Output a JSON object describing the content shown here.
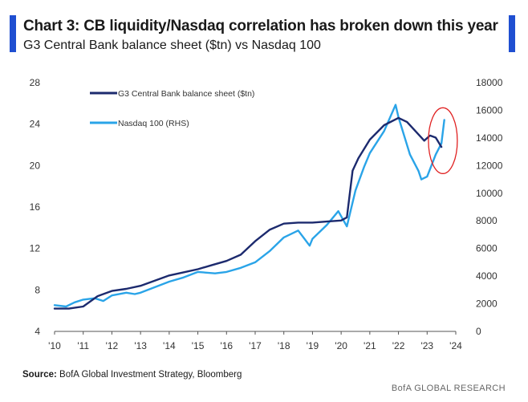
{
  "header": {
    "title": "Chart 3: CB liquidity/Nasdaq correlation has broken down this year",
    "subtitle": "G3 Central Bank balance sheet ($tn) vs Nasdaq 100"
  },
  "footer": {
    "source_label": "Source:",
    "source_text": "BofA Global Investment Strategy, Bloomberg",
    "brand": "BofA GLOBAL RESEARCH"
  },
  "colors": {
    "accent": "#1f4fd1",
    "balance_sheet": "#1c2a6e",
    "nasdaq": "#2aa4e8",
    "highlight_circle": "#e02020"
  },
  "chart_data": {
    "type": "line",
    "xlim": [
      2010,
      2024
    ],
    "x_ticks": [
      2010,
      2011,
      2012,
      2013,
      2014,
      2015,
      2016,
      2017,
      2018,
      2019,
      2020,
      2021,
      2022,
      2023,
      2024
    ],
    "x_tick_labels": [
      "'10",
      "'11",
      "'12",
      "'13",
      "'14",
      "'15",
      "'16",
      "'17",
      "'18",
      "'19",
      "'20",
      "'21",
      "'22",
      "'23",
      "'24"
    ],
    "ylim_left": [
      4,
      28
    ],
    "y_left_ticks": [
      4,
      8,
      12,
      16,
      20,
      24,
      28
    ],
    "ylim_right": [
      0,
      18000
    ],
    "y_right_ticks": [
      0,
      2000,
      4000,
      6000,
      8000,
      10000,
      12000,
      14000,
      16000,
      18000
    ],
    "legend_placement": "top-left",
    "annotation": "red circle around 2023 divergence",
    "series": [
      {
        "name": "G3 Central Bank balance sheet ($tn)",
        "axis": "left",
        "x": [
          2010.0,
          2010.5,
          2011.0,
          2011.5,
          2012.0,
          2012.5,
          2013.0,
          2013.5,
          2014.0,
          2014.5,
          2015.0,
          2015.5,
          2016.0,
          2016.5,
          2017.0,
          2017.5,
          2018.0,
          2018.5,
          2019.0,
          2019.5,
          2020.0,
          2020.2,
          2020.4,
          2020.6,
          2021.0,
          2021.5,
          2022.0,
          2022.3,
          2022.6,
          2022.9,
          2023.1,
          2023.3,
          2023.5
        ],
        "y": [
          6.2,
          6.2,
          6.4,
          7.4,
          7.9,
          8.1,
          8.4,
          8.9,
          9.4,
          9.7,
          10.0,
          10.4,
          10.8,
          11.4,
          12.7,
          13.8,
          14.4,
          14.5,
          14.5,
          14.6,
          14.7,
          15.0,
          19.5,
          20.7,
          22.5,
          23.9,
          24.6,
          24.2,
          23.3,
          22.4,
          22.9,
          22.7,
          21.8
        ]
      },
      {
        "name": "Nasdaq 100 (RHS)",
        "axis": "right",
        "x": [
          2010.0,
          2010.4,
          2010.7,
          2011.0,
          2011.4,
          2011.7,
          2012.0,
          2012.5,
          2012.8,
          2013.0,
          2013.5,
          2014.0,
          2014.5,
          2015.0,
          2015.6,
          2016.0,
          2016.5,
          2017.0,
          2017.5,
          2018.0,
          2018.5,
          2018.9,
          2019.0,
          2019.5,
          2019.9,
          2020.2,
          2020.5,
          2020.8,
          2021.0,
          2021.5,
          2021.9,
          2022.0,
          2022.4,
          2022.7,
          2022.8,
          2023.0,
          2023.3,
          2023.5,
          2023.6
        ],
        "y": [
          1900,
          1800,
          2100,
          2300,
          2400,
          2200,
          2600,
          2800,
          2700,
          2800,
          3200,
          3600,
          3900,
          4300,
          4200,
          4300,
          4600,
          5000,
          5800,
          6800,
          7300,
          6200,
          6700,
          7700,
          8700,
          7600,
          10200,
          11900,
          12900,
          14500,
          16400,
          15500,
          12800,
          11600,
          11000,
          11200,
          12800,
          13600,
          15300
        ]
      }
    ]
  }
}
